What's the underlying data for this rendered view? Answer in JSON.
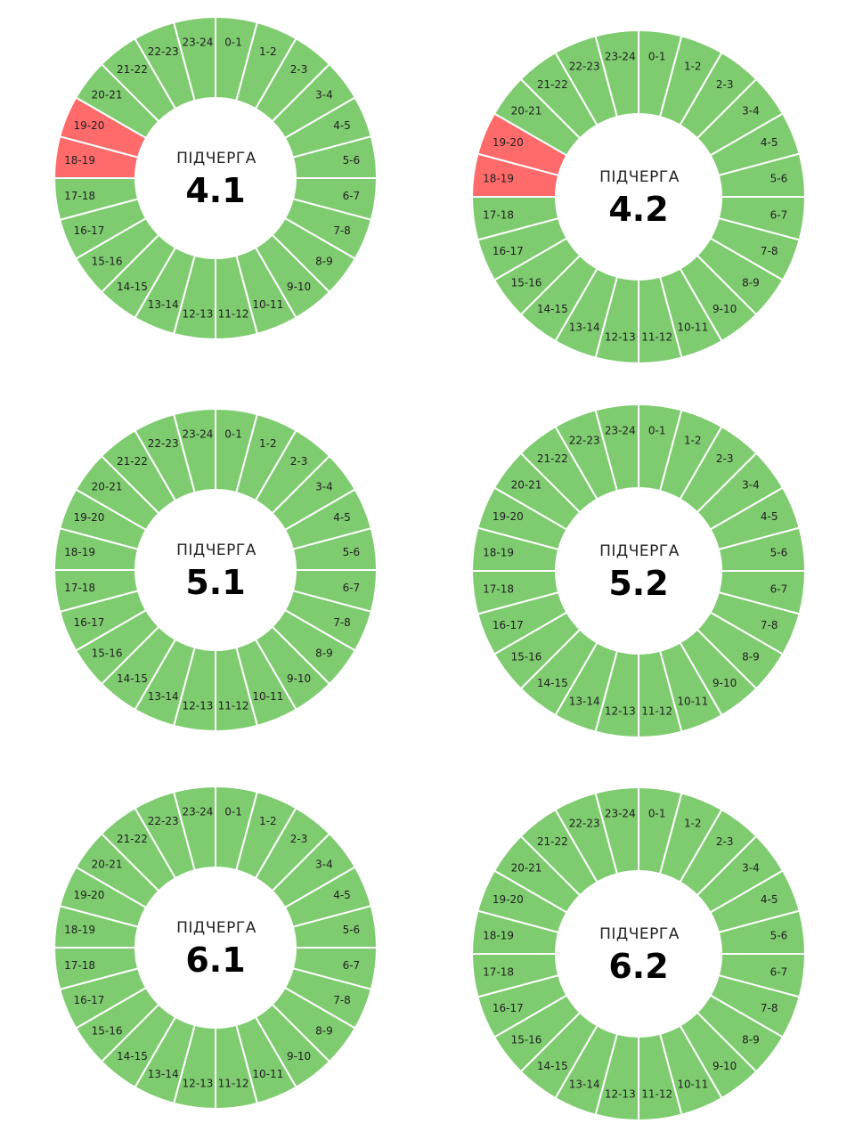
{
  "colors": {
    "on": "#7fcc70",
    "off": "#ff6b6b",
    "background": "#ffffff",
    "separator": "#ffffff"
  },
  "caption": "ПІДЧЕРГА",
  "hours": [
    "0-1",
    "1-2",
    "2-3",
    "3-4",
    "4-5",
    "5-6",
    "6-7",
    "7-8",
    "8-9",
    "9-10",
    "10-11",
    "11-12",
    "12-13",
    "13-14",
    "14-15",
    "15-16",
    "16-17",
    "17-18",
    "18-19",
    "19-20",
    "20-21",
    "21-22",
    "22-23",
    "23-24"
  ],
  "chart_data": [
    {
      "type": "pie",
      "title": "4.1",
      "categories": [
        "0-1",
        "1-2",
        "2-3",
        "3-4",
        "4-5",
        "5-6",
        "6-7",
        "7-8",
        "8-9",
        "9-10",
        "10-11",
        "11-12",
        "12-13",
        "13-14",
        "14-15",
        "15-16",
        "16-17",
        "17-18",
        "18-19",
        "19-20",
        "20-21",
        "21-22",
        "22-23",
        "23-24"
      ],
      "values": [
        1,
        1,
        1,
        1,
        1,
        1,
        1,
        1,
        1,
        1,
        1,
        1,
        1,
        1,
        1,
        1,
        1,
        1,
        1,
        1,
        1,
        1,
        1,
        1
      ],
      "outage": [
        18,
        19
      ]
    },
    {
      "type": "pie",
      "title": "4.2",
      "categories": [
        "0-1",
        "1-2",
        "2-3",
        "3-4",
        "4-5",
        "5-6",
        "6-7",
        "7-8",
        "8-9",
        "9-10",
        "10-11",
        "11-12",
        "12-13",
        "13-14",
        "14-15",
        "15-16",
        "16-17",
        "17-18",
        "18-19",
        "19-20",
        "20-21",
        "21-22",
        "22-23",
        "23-24"
      ],
      "values": [
        1,
        1,
        1,
        1,
        1,
        1,
        1,
        1,
        1,
        1,
        1,
        1,
        1,
        1,
        1,
        1,
        1,
        1,
        1,
        1,
        1,
        1,
        1,
        1
      ],
      "outage": [
        18,
        19
      ]
    },
    {
      "type": "pie",
      "title": "5.1",
      "categories": [
        "0-1",
        "1-2",
        "2-3",
        "3-4",
        "4-5",
        "5-6",
        "6-7",
        "7-8",
        "8-9",
        "9-10",
        "10-11",
        "11-12",
        "12-13",
        "13-14",
        "14-15",
        "15-16",
        "16-17",
        "17-18",
        "18-19",
        "19-20",
        "20-21",
        "21-22",
        "22-23",
        "23-24"
      ],
      "values": [
        1,
        1,
        1,
        1,
        1,
        1,
        1,
        1,
        1,
        1,
        1,
        1,
        1,
        1,
        1,
        1,
        1,
        1,
        1,
        1,
        1,
        1,
        1,
        1
      ],
      "outage": []
    },
    {
      "type": "pie",
      "title": "5.2",
      "categories": [
        "0-1",
        "1-2",
        "2-3",
        "3-4",
        "4-5",
        "5-6",
        "6-7",
        "7-8",
        "8-9",
        "9-10",
        "10-11",
        "11-12",
        "12-13",
        "13-14",
        "14-15",
        "15-16",
        "16-17",
        "17-18",
        "18-19",
        "19-20",
        "20-21",
        "21-22",
        "22-23",
        "23-24"
      ],
      "values": [
        1,
        1,
        1,
        1,
        1,
        1,
        1,
        1,
        1,
        1,
        1,
        1,
        1,
        1,
        1,
        1,
        1,
        1,
        1,
        1,
        1,
        1,
        1,
        1
      ],
      "outage": []
    },
    {
      "type": "pie",
      "title": "6.1",
      "categories": [
        "0-1",
        "1-2",
        "2-3",
        "3-4",
        "4-5",
        "5-6",
        "6-7",
        "7-8",
        "8-9",
        "9-10",
        "10-11",
        "11-12",
        "12-13",
        "13-14",
        "14-15",
        "15-16",
        "16-17",
        "17-18",
        "18-19",
        "19-20",
        "20-21",
        "21-22",
        "22-23",
        "23-24"
      ],
      "values": [
        1,
        1,
        1,
        1,
        1,
        1,
        1,
        1,
        1,
        1,
        1,
        1,
        1,
        1,
        1,
        1,
        1,
        1,
        1,
        1,
        1,
        1,
        1,
        1
      ],
      "outage": []
    },
    {
      "type": "pie",
      "title": "6.2",
      "categories": [
        "0-1",
        "1-2",
        "2-3",
        "3-4",
        "4-5",
        "5-6",
        "6-7",
        "7-8",
        "8-9",
        "9-10",
        "10-11",
        "11-12",
        "12-13",
        "13-14",
        "14-15",
        "15-16",
        "16-17",
        "17-18",
        "18-19",
        "19-20",
        "20-21",
        "21-22",
        "22-23",
        "23-24"
      ],
      "values": [
        1,
        1,
        1,
        1,
        1,
        1,
        1,
        1,
        1,
        1,
        1,
        1,
        1,
        1,
        1,
        1,
        1,
        1,
        1,
        1,
        1,
        1,
        1,
        1
      ],
      "outage": []
    }
  ]
}
